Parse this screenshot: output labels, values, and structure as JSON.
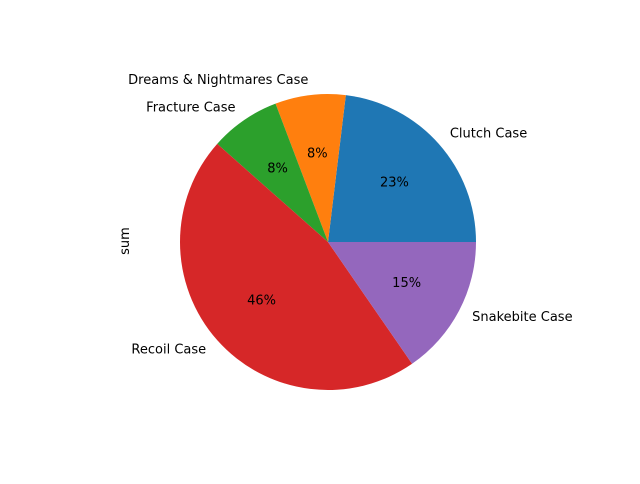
{
  "chart_data": {
    "type": "pie",
    "ylabel": "sum",
    "labels": [
      "Clutch Case",
      "Dreams & Nightmares Case",
      "Fracture Case",
      "Recoil Case",
      "Snakebite Case"
    ],
    "values": [
      3,
      1,
      1,
      6,
      2
    ],
    "percent_labels": [
      "23%",
      "8%",
      "8%",
      "46%",
      "15%"
    ],
    "colors": [
      "#1f77b4",
      "#ff7f0e",
      "#2ca02c",
      "#d62728",
      "#9467bd"
    ],
    "start_angle_deg": 0,
    "direction": "counterclockwise",
    "legend": "none"
  }
}
